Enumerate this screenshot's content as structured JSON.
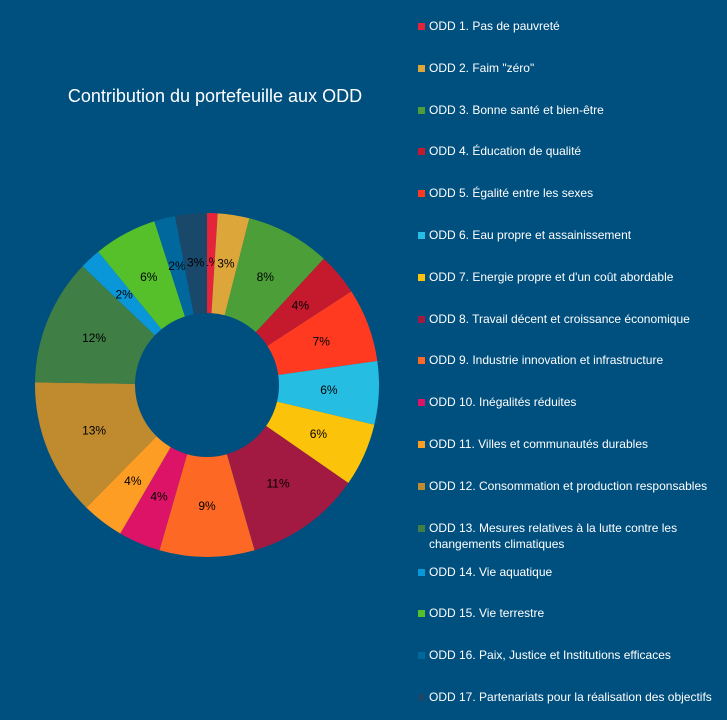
{
  "chart_data": {
    "type": "pie",
    "donut": true,
    "title": "Contribution du portefeuille aux ODD",
    "categories": [
      "ODD 1. Pas de pauvreté",
      "ODD 2. Faim \"zéro\"",
      "ODD 3. Bonne santé et bien-être",
      "ODD 4. Éducation de qualité",
      "ODD 5. Égalité entre les sexes",
      "ODD 6. Eau propre et assainissement",
      "ODD 7. Energie propre et d'un coût abordable",
      "ODD 8. Travail décent et croissance économique",
      "ODD 9. Industrie innovation et infrastructure",
      "ODD 10. Inégalités réduites",
      "ODD 11. Villes et communautés durables",
      "ODD 12. Consommation et production responsables",
      "ODD 13. Mesures relatives à la lutte contre les changements climatiques",
      "ODD 14. Vie aquatique",
      "ODD 15. Vie terrestre",
      "ODD 16. Paix, Justice et Institutions efficaces",
      "ODD 17. Partenariats pour la réalisation des objectifs"
    ],
    "values": [
      1,
      3,
      8,
      4,
      7,
      6,
      6,
      11,
      9,
      4,
      4,
      13,
      12,
      2,
      6,
      2,
      3
    ],
    "value_labels": [
      "1%",
      "3%",
      "8%",
      "4%",
      "7%",
      "6%",
      "6%",
      "11%",
      "9%",
      "4%",
      "4%",
      "13%",
      "12%",
      "2%",
      "6%",
      "2%",
      "3%"
    ],
    "colors": [
      "#e5243b",
      "#dda63a",
      "#4c9f38",
      "#c5192d",
      "#ff3a21",
      "#26bde2",
      "#fcc30b",
      "#a21942",
      "#fd6925",
      "#dd1367",
      "#fd9d24",
      "#bf8b2e",
      "#3f7e44",
      "#0a97d9",
      "#56c02b",
      "#00689d",
      "#19486a"
    ],
    "legend": "right"
  }
}
